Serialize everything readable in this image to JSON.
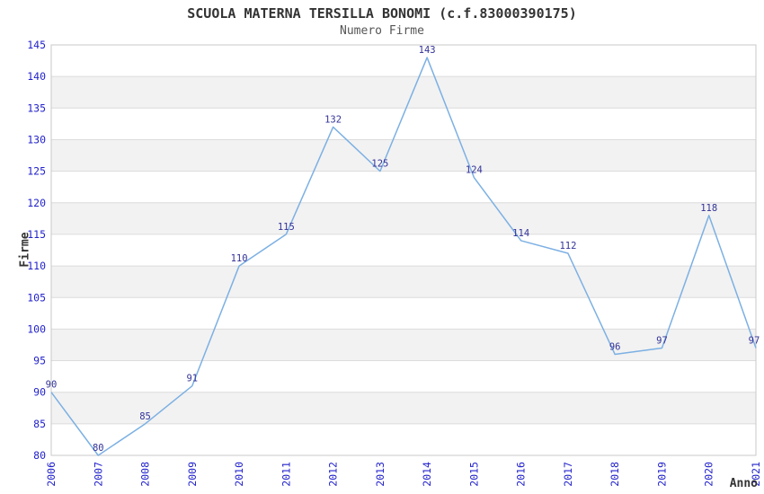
{
  "chart_data": {
    "type": "line",
    "title": "SCUOLA MATERNA TERSILLA BONOMI (c.f.83000390175)",
    "subtitle": "Numero Firme",
    "xlabel": "Anno",
    "ylabel": "Firme",
    "categories": [
      "2006",
      "2007",
      "2008",
      "2009",
      "2010",
      "2011",
      "2012",
      "2013",
      "2014",
      "2015",
      "2016",
      "2017",
      "2018",
      "2019",
      "2020",
      "2021"
    ],
    "series": [
      {
        "name": "Numero Firme",
        "values": [
          90,
          80,
          85,
          91,
          110,
          115,
          132,
          125,
          143,
          124,
          114,
          112,
          96,
          97,
          118,
          97
        ]
      }
    ],
    "ylim": [
      80,
      145
    ],
    "ytick_step": 5,
    "grid": "horizontal",
    "alternating_bands": true,
    "legend_position": "none",
    "data_labels_visible": true,
    "colors": {
      "line": "#7cb0e3",
      "tick_label": "#2323cc",
      "data_label": "#333399",
      "band": "#f2f2f2",
      "gridline": "#dcdcdc",
      "plot_border": "#c8c8c8",
      "title": "#333333",
      "subtitle": "#555555",
      "axis_title": "#333333",
      "background": "#ffffff"
    }
  }
}
